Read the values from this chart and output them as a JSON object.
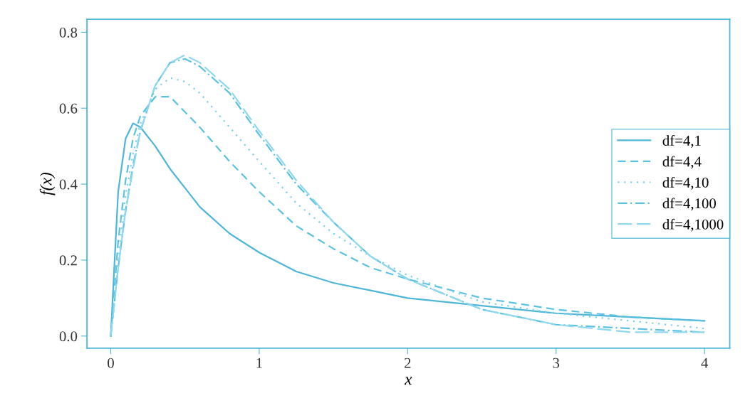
{
  "chart_data": {
    "type": "line",
    "xlabel": "x",
    "ylabel": "f(x)",
    "x": [
      0,
      0.05,
      0.1,
      0.15,
      0.2,
      0.3,
      0.4,
      0.5,
      0.6,
      0.8,
      1.0,
      1.25,
      1.5,
      1.75,
      2.0,
      2.5,
      3.0,
      3.5,
      4.0
    ],
    "xlim": [
      -0.16,
      4.17
    ],
    "ylim": [
      -0.032,
      0.834
    ],
    "xticks": [
      0,
      1,
      2,
      3,
      4
    ],
    "yticks": [
      {
        "value": 0,
        "label": "0.0"
      },
      {
        "value": 0.2,
        "label": "0.2"
      },
      {
        "value": 0.4,
        "label": "0.4"
      },
      {
        "value": 0.6,
        "label": "0.6"
      },
      {
        "value": 0.8,
        "label": "0.8"
      }
    ],
    "grid": false,
    "legend": "right",
    "marker": "none",
    "series": [
      {
        "name": "df=4,1",
        "color": "#4db6d9",
        "line_style": "solid",
        "values": [
          0,
          0.38,
          0.52,
          0.56,
          0.55,
          0.5,
          0.44,
          0.39,
          0.34,
          0.27,
          0.22,
          0.17,
          0.14,
          0.12,
          0.1,
          0.08,
          0.06,
          0.05,
          0.04
        ]
      },
      {
        "name": "df=4,4",
        "color": "#5cc2e2",
        "line_style": "dashed",
        "values": [
          0,
          0.25,
          0.41,
          0.52,
          0.58,
          0.63,
          0.63,
          0.59,
          0.55,
          0.46,
          0.38,
          0.29,
          0.23,
          0.18,
          0.15,
          0.1,
          0.07,
          0.05,
          0.04
        ]
      },
      {
        "name": "df=4,10",
        "color": "#7dd0ea",
        "line_style": "dotted",
        "values": [
          0,
          0.21,
          0.37,
          0.48,
          0.56,
          0.65,
          0.68,
          0.67,
          0.64,
          0.55,
          0.46,
          0.35,
          0.27,
          0.21,
          0.16,
          0.09,
          0.06,
          0.04,
          0.02
        ]
      },
      {
        "name": "df=4,100",
        "color": "#5cc2e2",
        "line_style": "dashdot",
        "values": [
          0,
          0.18,
          0.33,
          0.45,
          0.54,
          0.66,
          0.72,
          0.73,
          0.71,
          0.64,
          0.53,
          0.4,
          0.3,
          0.21,
          0.15,
          0.07,
          0.03,
          0.02,
          0.01
        ]
      },
      {
        "name": "df=4,1000",
        "color": "#8fd8ee",
        "line_style": "longdash",
        "values": [
          0,
          0.18,
          0.33,
          0.44,
          0.54,
          0.66,
          0.72,
          0.74,
          0.72,
          0.65,
          0.54,
          0.41,
          0.3,
          0.21,
          0.15,
          0.07,
          0.03,
          0.01,
          0.01
        ]
      }
    ]
  }
}
